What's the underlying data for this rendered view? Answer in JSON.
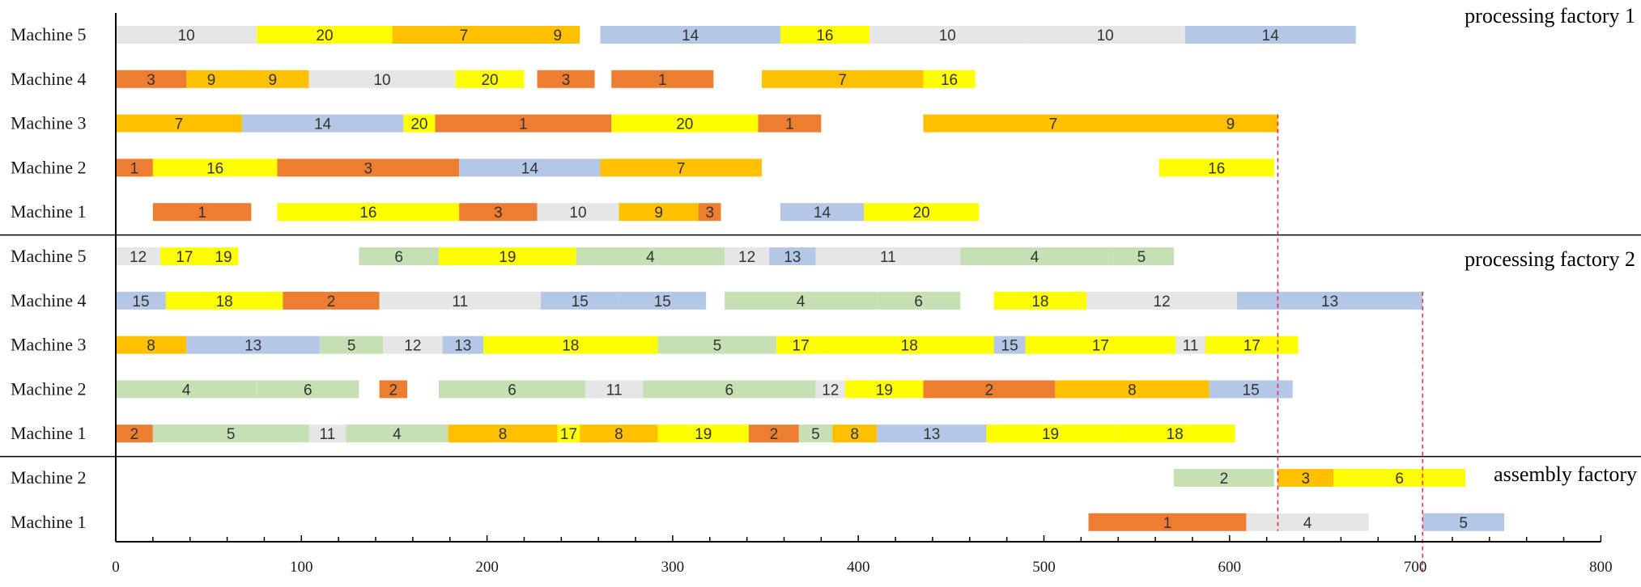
{
  "colors": {
    "orange": "#ED7D31",
    "gold": "#FFC000",
    "yellow": "#FFFF00",
    "blue": "#B4C7E7",
    "green": "#C5E0B4",
    "gray": "#E7E6E6",
    "divider": "#000000",
    "dashed": "#E0304A"
  },
  "chart_data": {
    "type": "gantt",
    "xlim": [
      0,
      800
    ],
    "xticks": [
      0,
      100,
      200,
      300,
      400,
      500,
      600,
      700,
      800
    ],
    "sections": [
      {
        "name": "processing factory 1",
        "machines": [
          {
            "label": "Machine 5",
            "tasks": [
              {
                "job": "10",
                "start": 0,
                "end": 76,
                "color": "gray"
              },
              {
                "job": "20",
                "start": 76,
                "end": 149,
                "color": "yellow"
              },
              {
                "job": "7",
                "start": 149,
                "end": 226,
                "color": "gold"
              },
              {
                "job": "9",
                "start": 226,
                "end": 250,
                "color": "gold"
              },
              {
                "job": "14",
                "start": 261,
                "end": 358,
                "color": "blue"
              },
              {
                "job": "16",
                "start": 358,
                "end": 406,
                "color": "yellow"
              },
              {
                "job": "10",
                "start": 406,
                "end": 490,
                "color": "gray"
              },
              {
                "job": "10",
                "start": 490,
                "end": 576,
                "color": "gray"
              },
              {
                "job": "14",
                "start": 576,
                "end": 668,
                "color": "blue"
              }
            ]
          },
          {
            "label": "Machine 4",
            "tasks": [
              {
                "job": "3",
                "start": 0,
                "end": 38,
                "color": "orange"
              },
              {
                "job": "9",
                "start": 38,
                "end": 65,
                "color": "gold"
              },
              {
                "job": "9",
                "start": 65,
                "end": 104,
                "color": "gold"
              },
              {
                "job": "10",
                "start": 104,
                "end": 183,
                "color": "gray"
              },
              {
                "job": "20",
                "start": 183,
                "end": 220,
                "color": "yellow"
              },
              {
                "job": "3",
                "start": 227,
                "end": 258,
                "color": "orange"
              },
              {
                "job": "1",
                "start": 267,
                "end": 322,
                "color": "orange"
              },
              {
                "job": "7",
                "start": 348,
                "end": 435,
                "color": "gold"
              },
              {
                "job": "16",
                "start": 435,
                "end": 463,
                "color": "yellow"
              }
            ]
          },
          {
            "label": "Machine 3",
            "tasks": [
              {
                "job": "7",
                "start": 0,
                "end": 68,
                "color": "gold"
              },
              {
                "job": "14",
                "start": 68,
                "end": 155,
                "color": "blue"
              },
              {
                "job": "20",
                "start": 155,
                "end": 172,
                "color": "yellow"
              },
              {
                "job": "1",
                "start": 172,
                "end": 267,
                "color": "orange"
              },
              {
                "job": "20",
                "start": 267,
                "end": 346,
                "color": "yellow"
              },
              {
                "job": "1",
                "start": 346,
                "end": 380,
                "color": "orange"
              },
              {
                "job": "7",
                "start": 435,
                "end": 575,
                "color": "gold"
              },
              {
                "job": "9",
                "start": 575,
                "end": 626,
                "color": "gold"
              }
            ]
          },
          {
            "label": "Machine 2",
            "tasks": [
              {
                "job": "1",
                "start": 0,
                "end": 20,
                "color": "orange"
              },
              {
                "job": "16",
                "start": 20,
                "end": 87,
                "color": "yellow"
              },
              {
                "job": "3",
                "start": 87,
                "end": 185,
                "color": "orange"
              },
              {
                "job": "14",
                "start": 185,
                "end": 261,
                "color": "blue"
              },
              {
                "job": "7",
                "start": 261,
                "end": 348,
                "color": "gold"
              },
              {
                "job": "16",
                "start": 562,
                "end": 624,
                "color": "yellow"
              }
            ]
          },
          {
            "label": "Machine 1",
            "tasks": [
              {
                "job": "1",
                "start": 20,
                "end": 73,
                "color": "orange"
              },
              {
                "job": "16",
                "start": 87,
                "end": 185,
                "color": "yellow"
              },
              {
                "job": "3",
                "start": 185,
                "end": 227,
                "color": "orange"
              },
              {
                "job": "10",
                "start": 227,
                "end": 271,
                "color": "gray"
              },
              {
                "job": "9",
                "start": 271,
                "end": 314,
                "color": "gold"
              },
              {
                "job": "3",
                "start": 314,
                "end": 326,
                "color": "orange"
              },
              {
                "job": "14",
                "start": 358,
                "end": 403,
                "color": "blue"
              },
              {
                "job": "20",
                "start": 403,
                "end": 465,
                "color": "yellow"
              }
            ]
          }
        ]
      },
      {
        "name": "processing factory 2",
        "machines": [
          {
            "label": "Machine 5",
            "tasks": [
              {
                "job": "12",
                "start": 0,
                "end": 24,
                "color": "gray"
              },
              {
                "job": "17",
                "start": 24,
                "end": 50,
                "color": "yellow"
              },
              {
                "job": "19",
                "start": 50,
                "end": 66,
                "color": "yellow"
              },
              {
                "job": "6",
                "start": 131,
                "end": 174,
                "color": "green"
              },
              {
                "job": "19",
                "start": 174,
                "end": 248,
                "color": "yellow"
              },
              {
                "job": "4",
                "start": 248,
                "end": 328,
                "color": "green"
              },
              {
                "job": "12",
                "start": 328,
                "end": 352,
                "color": "gray"
              },
              {
                "job": "13",
                "start": 352,
                "end": 377,
                "color": "blue"
              },
              {
                "job": "11",
                "start": 377,
                "end": 455,
                "color": "gray"
              },
              {
                "job": "4",
                "start": 455,
                "end": 535,
                "color": "green"
              },
              {
                "job": "5",
                "start": 535,
                "end": 570,
                "color": "green"
              }
            ]
          },
          {
            "label": "Machine 4",
            "tasks": [
              {
                "job": "15",
                "start": 0,
                "end": 27,
                "color": "blue"
              },
              {
                "job": "18",
                "start": 27,
                "end": 90,
                "color": "yellow"
              },
              {
                "job": "2",
                "start": 90,
                "end": 142,
                "color": "orange"
              },
              {
                "job": "11",
                "start": 142,
                "end": 229,
                "color": "gray"
              },
              {
                "job": "15",
                "start": 229,
                "end": 271,
                "color": "blue"
              },
              {
                "job": "15",
                "start": 271,
                "end": 318,
                "color": "blue"
              },
              {
                "job": "4",
                "start": 328,
                "end": 410,
                "color": "green"
              },
              {
                "job": "6",
                "start": 410,
                "end": 455,
                "color": "green"
              },
              {
                "job": "18",
                "start": 473,
                "end": 523,
                "color": "yellow"
              },
              {
                "job": "12",
                "start": 523,
                "end": 604,
                "color": "gray"
              },
              {
                "job": "13",
                "start": 604,
                "end": 704,
                "color": "blue"
              }
            ]
          },
          {
            "label": "Machine 3",
            "tasks": [
              {
                "job": "8",
                "start": 0,
                "end": 38,
                "color": "gold"
              },
              {
                "job": "13",
                "start": 38,
                "end": 110,
                "color": "blue"
              },
              {
                "job": "5",
                "start": 110,
                "end": 144,
                "color": "green"
              },
              {
                "job": "12",
                "start": 144,
                "end": 176,
                "color": "gray"
              },
              {
                "job": "13",
                "start": 176,
                "end": 198,
                "color": "blue"
              },
              {
                "job": "18",
                "start": 198,
                "end": 292,
                "color": "yellow"
              },
              {
                "job": "5",
                "start": 292,
                "end": 356,
                "color": "green"
              },
              {
                "job": "17",
                "start": 356,
                "end": 382,
                "color": "yellow"
              },
              {
                "job": "18",
                "start": 382,
                "end": 473,
                "color": "yellow"
              },
              {
                "job": "15",
                "start": 473,
                "end": 490,
                "color": "blue"
              },
              {
                "job": "17",
                "start": 490,
                "end": 571,
                "color": "yellow"
              },
              {
                "job": "11",
                "start": 571,
                "end": 587,
                "color": "gray"
              },
              {
                "job": "17",
                "start": 587,
                "end": 637,
                "color": "yellow"
              }
            ]
          },
          {
            "label": "Machine 2",
            "tasks": [
              {
                "job": "4",
                "start": 0,
                "end": 76,
                "color": "green"
              },
              {
                "job": "6",
                "start": 76,
                "end": 131,
                "color": "green"
              },
              {
                "job": "2",
                "start": 142,
                "end": 157,
                "color": "orange"
              },
              {
                "job": "6",
                "start": 174,
                "end": 253,
                "color": "green"
              },
              {
                "job": "11",
                "start": 253,
                "end": 284,
                "color": "gray"
              },
              {
                "job": "6",
                "start": 284,
                "end": 377,
                "color": "green"
              },
              {
                "job": "12",
                "start": 377,
                "end": 393,
                "color": "gray"
              },
              {
                "job": "19",
                "start": 393,
                "end": 435,
                "color": "yellow"
              },
              {
                "job": "2",
                "start": 435,
                "end": 506,
                "color": "orange"
              },
              {
                "job": "8",
                "start": 506,
                "end": 589,
                "color": "gold"
              },
              {
                "job": "15",
                "start": 589,
                "end": 634,
                "color": "blue"
              }
            ]
          },
          {
            "label": "Machine 1",
            "tasks": [
              {
                "job": "2",
                "start": 0,
                "end": 20,
                "color": "orange"
              },
              {
                "job": "5",
                "start": 20,
                "end": 104,
                "color": "green"
              },
              {
                "job": "11",
                "start": 104,
                "end": 124,
                "color": "gray"
              },
              {
                "job": "4",
                "start": 124,
                "end": 179,
                "color": "green"
              },
              {
                "job": "8",
                "start": 179,
                "end": 238,
                "color": "gold"
              },
              {
                "job": "17",
                "start": 238,
                "end": 250,
                "color": "yellow"
              },
              {
                "job": "8",
                "start": 250,
                "end": 292,
                "color": "gold"
              },
              {
                "job": "19",
                "start": 292,
                "end": 341,
                "color": "yellow"
              },
              {
                "job": "2",
                "start": 341,
                "end": 368,
                "color": "orange"
              },
              {
                "job": "5",
                "start": 368,
                "end": 386,
                "color": "green"
              },
              {
                "job": "8",
                "start": 386,
                "end": 410,
                "color": "gold"
              },
              {
                "job": "13",
                "start": 410,
                "end": 469,
                "color": "blue"
              },
              {
                "job": "19",
                "start": 469,
                "end": 538,
                "color": "yellow"
              },
              {
                "job": "18",
                "start": 538,
                "end": 603,
                "color": "yellow"
              }
            ]
          }
        ]
      },
      {
        "name": "assembly factory",
        "machines": [
          {
            "label": "Machine 2",
            "tasks": [
              {
                "job": "2",
                "start": 570,
                "end": 624,
                "color": "green"
              },
              {
                "job": "3",
                "start": 626,
                "end": 656,
                "color": "gold"
              },
              {
                "job": "6",
                "start": 656,
                "end": 727,
                "color": "yellow"
              }
            ]
          },
          {
            "label": "Machine 1",
            "tasks": [
              {
                "job": "1",
                "start": 524,
                "end": 609,
                "color": "orange"
              },
              {
                "job": "4",
                "start": 609,
                "end": 675,
                "color": "gray"
              },
              {
                "job": "5",
                "start": 704,
                "end": 748,
                "color": "blue"
              }
            ]
          }
        ]
      }
    ],
    "dashed_lines": [
      {
        "x": 626,
        "from_row": 2,
        "to_row": 11
      },
      {
        "x": 704,
        "from_row": 6,
        "to_row": 12
      }
    ]
  }
}
